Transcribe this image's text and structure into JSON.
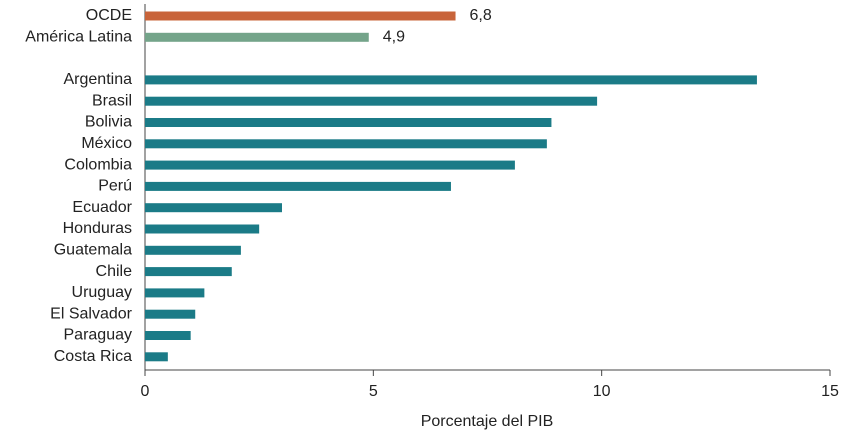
{
  "chart_data": {
    "type": "barh",
    "categories": [
      "OCDE",
      "América Latina",
      null,
      "Argentina",
      "Brasil",
      "Bolivia",
      "México",
      "Colombia",
      "Perú",
      "Ecuador",
      "Honduras",
      "Guatemala",
      "Chile",
      "Uruguay",
      "El Salvador",
      "Paraguay",
      "Costa Rica"
    ],
    "values": [
      6.8,
      4.9,
      null,
      13.4,
      9.9,
      8.9,
      8.8,
      8.1,
      6.7,
      3.0,
      2.5,
      2.1,
      1.9,
      1.3,
      1.1,
      1.0,
      0.5
    ],
    "value_labels": [
      "6,8",
      "4,9",
      null,
      null,
      null,
      null,
      null,
      null,
      null,
      null,
      null,
      null,
      null,
      null,
      null,
      null,
      null
    ],
    "colors": [
      "#c8643a",
      "#74a48a",
      null,
      "#1b7b87",
      "#1b7b87",
      "#1b7b87",
      "#1b7b87",
      "#1b7b87",
      "#1b7b87",
      "#1b7b87",
      "#1b7b87",
      "#1b7b87",
      "#1b7b87",
      "#1b7b87",
      "#1b7b87",
      "#1b7b87",
      "#1b7b87"
    ],
    "xlim": [
      0,
      15
    ],
    "xticks": [
      0,
      5,
      10,
      15
    ],
    "xlabel": "Porcentaje del PIB"
  }
}
